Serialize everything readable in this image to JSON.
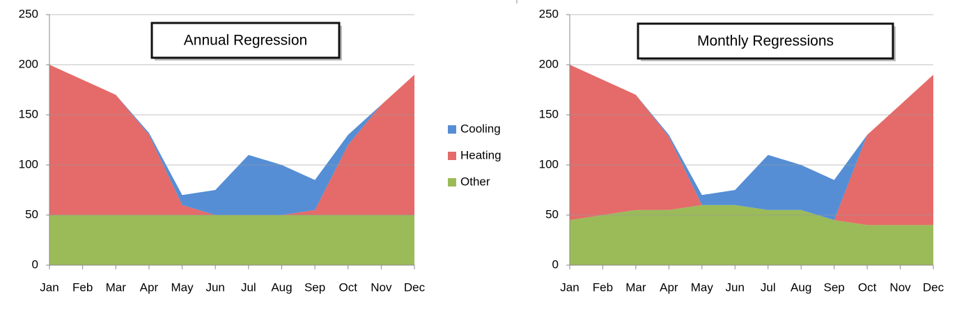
{
  "chart_data": [
    {
      "type": "area",
      "title": "Annual Regression",
      "categories": [
        "Jan",
        "Feb",
        "Mar",
        "Apr",
        "May",
        "Jun",
        "Jul",
        "Aug",
        "Sep",
        "Oct",
        "Nov",
        "Dec"
      ],
      "series": [
        {
          "name": "Other",
          "color": "#9bbb59",
          "values": [
            50,
            50,
            50,
            50,
            50,
            50,
            50,
            50,
            50,
            50,
            50,
            50
          ]
        },
        {
          "name": "Heating",
          "color": "#e46b69",
          "values": [
            150,
            135,
            120,
            80,
            10,
            0,
            0,
            0,
            5,
            70,
            110,
            140
          ]
        },
        {
          "name": "Cooling",
          "color": "#558ed5",
          "values": [
            0,
            0,
            0,
            2,
            10,
            25,
            60,
            50,
            30,
            10,
            0,
            0
          ]
        }
      ],
      "ylim": [
        0,
        250
      ],
      "yticks": [
        0,
        50,
        100,
        150,
        200,
        250
      ],
      "grid": true
    },
    {
      "type": "area",
      "title": "Monthly Regressions",
      "categories": [
        "Jan",
        "Feb",
        "Mar",
        "Apr",
        "May",
        "Jun",
        "Jul",
        "Aug",
        "Sep",
        "Oct",
        "Nov",
        "Dec"
      ],
      "series": [
        {
          "color": "#9bbb59",
          "values": [
            45,
            50,
            55,
            55,
            60,
            60,
            55,
            55,
            45,
            40,
            40,
            40
          ]
        },
        {
          "color": "#e46b69",
          "values": [
            155,
            135,
            115,
            73,
            0,
            0,
            0,
            0,
            0,
            90,
            120,
            150
          ]
        },
        {
          "color": "#558ed5",
          "values": [
            0,
            0,
            0,
            2,
            10,
            15,
            55,
            45,
            40,
            0,
            0,
            0
          ]
        }
      ],
      "ylim": [
        0,
        250
      ],
      "yticks": [
        0,
        50,
        100,
        150,
        200,
        250
      ],
      "grid": true
    }
  ]
}
